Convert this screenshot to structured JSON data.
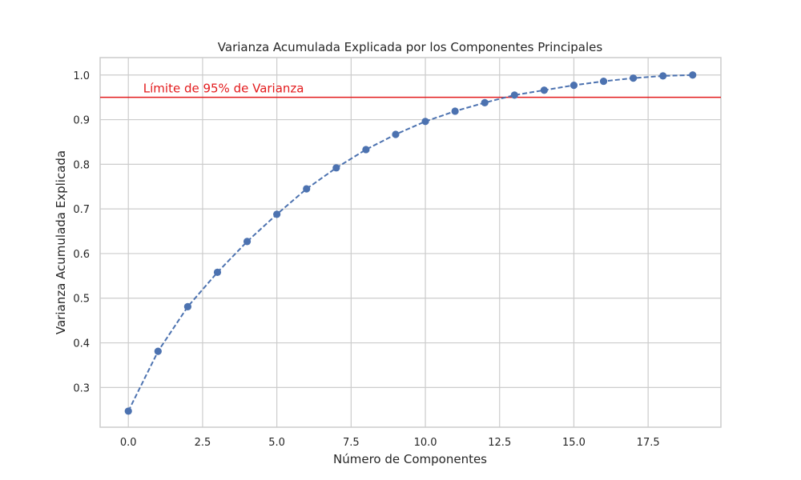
{
  "chart_data": {
    "type": "line",
    "title": "Varianza Acumulada Explicada por los Componentes Principales",
    "xlabel": "Número de Componentes",
    "ylabel": "Varianza Acumulada Explicada",
    "xlim": [
      -0.95,
      19.95
    ],
    "ylim": [
      0.211,
      1.039
    ],
    "xticks": [
      0.0,
      2.5,
      5.0,
      7.5,
      10.0,
      12.5,
      15.0,
      17.5
    ],
    "xtick_labels": [
      "0.0",
      "2.5",
      "5.0",
      "7.5",
      "10.0",
      "12.5",
      "15.0",
      "17.5"
    ],
    "yticks": [
      0.3,
      0.4,
      0.5,
      0.6,
      0.7,
      0.8,
      0.9,
      1.0
    ],
    "ytick_labels": [
      "0.3",
      "0.4",
      "0.5",
      "0.6",
      "0.7",
      "0.8",
      "0.9",
      "1.0"
    ],
    "grid": true,
    "series": [
      {
        "x": [
          0,
          1,
          2,
          3,
          4,
          5,
          6,
          7,
          8,
          9,
          10,
          11,
          12,
          13,
          14,
          15,
          16,
          17,
          18,
          19
        ],
        "values": [
          0.247,
          0.381,
          0.481,
          0.558,
          0.627,
          0.688,
          0.745,
          0.792,
          0.833,
          0.867,
          0.896,
          0.919,
          0.938,
          0.955,
          0.966,
          0.977,
          0.986,
          0.993,
          0.998,
          1.0
        ],
        "color": "#4c72b0",
        "linestyle": "dashed",
        "marker": "circle"
      }
    ],
    "threshold": {
      "y": 0.95,
      "label": "Límite de 95% de Varianza",
      "color": "#e31a1c",
      "label_x": 0.5
    }
  }
}
